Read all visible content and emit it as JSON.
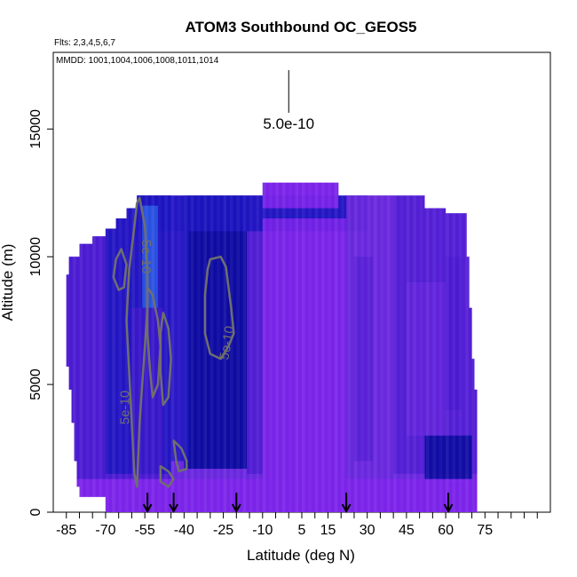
{
  "chart_data": {
    "type": "heatmap",
    "title": "ATOM3 Southbound OC_GEOS5",
    "subtitle_flights": "Flts: 2,3,4,5,6,7",
    "subtitle_dates": "MMDD: 1001,1004,1006,1008,1011,1014",
    "xlabel": "Latitude (deg N)",
    "ylabel": "Altitude (m)",
    "xlim": [
      -90,
      100
    ],
    "ylim": [
      0,
      18000
    ],
    "x_ticks": [
      -85,
      -70,
      -55,
      -40,
      -25,
      -10,
      5,
      15,
      30,
      45,
      60,
      75
    ],
    "x_tick_labels": [
      "-85",
      "-70",
      "-55",
      "-40",
      "-25",
      "-10",
      "5",
      "15",
      "30",
      "45",
      "60",
      "75"
    ],
    "x_minor_ticks": [
      -80,
      -75,
      -65,
      -60,
      -50,
      -45,
      -35,
      -30,
      -20,
      -15,
      -5,
      0,
      10,
      20,
      25,
      35,
      40,
      50,
      55,
      65,
      70,
      80,
      85,
      90,
      95
    ],
    "y_ticks": [
      0,
      5000,
      10000,
      15000
    ],
    "y_tick_labels": [
      "0",
      "5000",
      "10000",
      "15000"
    ],
    "scale_bar": {
      "value_label": "5.0e-10",
      "latitude": 0
    },
    "contour_labels": [
      "5e-10",
      "5e-10",
      "5e-10"
    ],
    "profile_latitudes": [
      -54,
      -44,
      -20,
      22,
      61
    ],
    "colors": {
      "violet": "#7d22ea",
      "purple": "#6a28de",
      "indigo": "#4a1ad0",
      "blue": "#1c14c0",
      "navy": "#0a0a9e",
      "light_blue": "#2a5ae6",
      "contour": "#6f6f6f"
    }
  }
}
